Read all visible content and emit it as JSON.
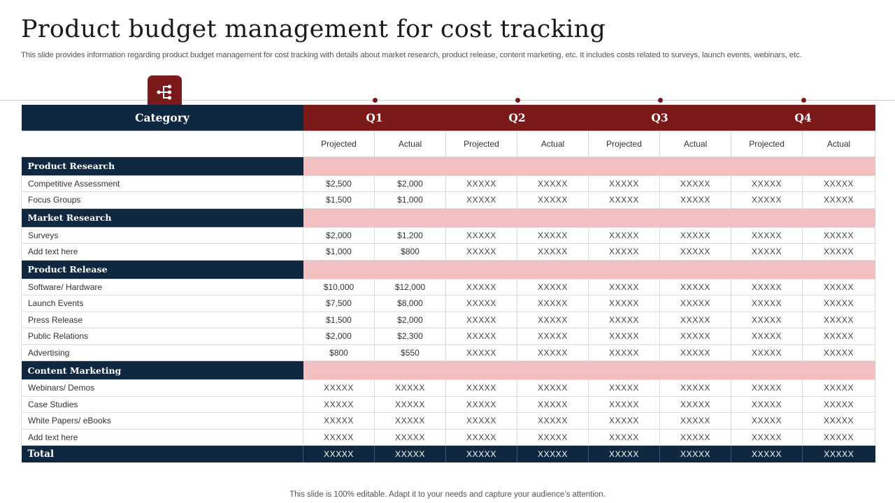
{
  "title": "Product budget management for cost tracking",
  "subtitle": "This slide provides information regarding product budget management for cost tracking with details about market research, product release, content marketing, etc. It includes costs related to surveys, launch events, webinars, etc.",
  "badge_icon": "hierarchy-tree-icon",
  "colors": {
    "navy": "#0f2840",
    "maroon": "#7a1a1a",
    "pink": "#f2c0c0"
  },
  "table": {
    "category_header": "Category",
    "quarters": [
      "Q1",
      "Q2",
      "Q3",
      "Q4"
    ],
    "projected_label": "Projected",
    "actual_label": "Actual",
    "sections": [
      {
        "name": "Product Research",
        "rows": [
          {
            "label": "Competitive Assessment",
            "values": [
              "$2,500",
              "$2,000",
              "XXXXX",
              "XXXXX",
              "XXXXX",
              "XXXXX",
              "XXXXX",
              "XXXXX"
            ]
          },
          {
            "label": "Focus Groups",
            "values": [
              "$1,500",
              "$1,000",
              "XXXXX",
              "XXXXX",
              "XXXXX",
              "XXXXX",
              "XXXXX",
              "XXXXX"
            ]
          }
        ]
      },
      {
        "name": "Market Research",
        "rows": [
          {
            "label": "Surveys",
            "values": [
              "$2,000",
              "$1,200",
              "XXXXX",
              "XXXXX",
              "XXXXX",
              "XXXXX",
              "XXXXX",
              "XXXXX"
            ]
          },
          {
            "label": "Add text here",
            "values": [
              "$1,000",
              "$800",
              "XXXXX",
              "XXXXX",
              "XXXXX",
              "XXXXX",
              "XXXXX",
              "XXXXX"
            ]
          }
        ]
      },
      {
        "name": "Product Release",
        "rows": [
          {
            "label": "Software/ Hardware",
            "values": [
              "$10,000",
              "$12,000",
              "XXXXX",
              "XXXXX",
              "XXXXX",
              "XXXXX",
              "XXXXX",
              "XXXXX"
            ]
          },
          {
            "label": "Launch Events",
            "values": [
              "$7,500",
              "$8,000",
              "XXXXX",
              "XXXXX",
              "XXXXX",
              "XXXXX",
              "XXXXX",
              "XXXXX"
            ]
          },
          {
            "label": "Press Release",
            "values": [
              "$1,500",
              "$2,000",
              "XXXXX",
              "XXXXX",
              "XXXXX",
              "XXXXX",
              "XXXXX",
              "XXXXX"
            ]
          },
          {
            "label": "Public Relations",
            "values": [
              "$2,000",
              "$2,300",
              "XXXXX",
              "XXXXX",
              "XXXXX",
              "XXXXX",
              "XXXXX",
              "XXXXX"
            ]
          },
          {
            "label": "Advertising",
            "values": [
              "$800",
              "$550",
              "XXXXX",
              "XXXXX",
              "XXXXX",
              "XXXXX",
              "XXXXX",
              "XXXXX"
            ]
          }
        ]
      },
      {
        "name": "Content Marketing",
        "rows": [
          {
            "label": "Webinars/ Demos",
            "values": [
              "XXXXX",
              "XXXXX",
              "XXXXX",
              "XXXXX",
              "XXXXX",
              "XXXXX",
              "XXXXX",
              "XXXXX"
            ]
          },
          {
            "label": "Case Studies",
            "values": [
              "XXXXX",
              "XXXXX",
              "XXXXX",
              "XXXXX",
              "XXXXX",
              "XXXXX",
              "XXXXX",
              "XXXXX"
            ]
          },
          {
            "label": "White Papers/ eBooks",
            "values": [
              "XXXXX",
              "XXXXX",
              "XXXXX",
              "XXXXX",
              "XXXXX",
              "XXXXX",
              "XXXXX",
              "XXXXX"
            ]
          },
          {
            "label": "Add text here",
            "values": [
              "XXXXX",
              "XXXXX",
              "XXXXX",
              "XXXXX",
              "XXXXX",
              "XXXXX",
              "XXXXX",
              "XXXXX"
            ]
          }
        ]
      }
    ],
    "total": {
      "label": "Total",
      "values": [
        "XXXXX",
        "XXXXX",
        "XXXXX",
        "XXXXX",
        "XXXXX",
        "XXXXX",
        "XXXXX",
        "XXXXX"
      ]
    }
  },
  "footer": "This slide is 100% editable. Adapt it to your needs and capture your audience’s attention."
}
